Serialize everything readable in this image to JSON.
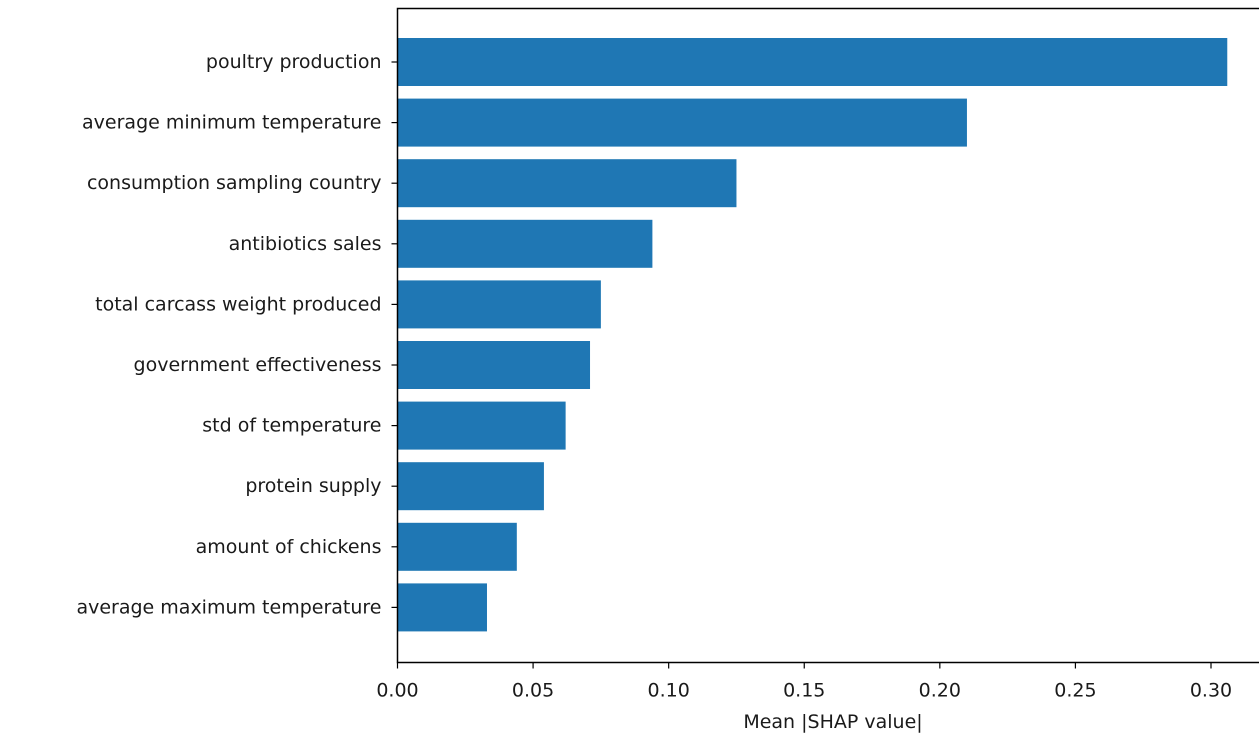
{
  "chart_data": {
    "type": "bar",
    "orientation": "horizontal",
    "title": "",
    "xlabel": "Mean |SHAP value|",
    "ylabel": "",
    "xlim": [
      0.0,
      0.315
    ],
    "xticks": [
      "0.00",
      "0.05",
      "0.10",
      "0.15",
      "0.20",
      "0.25",
      "0.30"
    ],
    "xtick_values": [
      0.0,
      0.05,
      0.1,
      0.15,
      0.2,
      0.25,
      0.3
    ],
    "grid": false,
    "bar_color": "#1f77b4",
    "categories": [
      "poultry production",
      "average minimum temperature",
      "consumption sampling country",
      "antibiotics sales",
      "total carcass weight produced",
      "government effectiveness",
      "std of temperature",
      "protein supply",
      "amount of chickens",
      "average maximum temperature"
    ],
    "values": [
      0.306,
      0.21,
      0.125,
      0.094,
      0.075,
      0.071,
      0.062,
      0.054,
      0.044,
      0.033
    ]
  }
}
